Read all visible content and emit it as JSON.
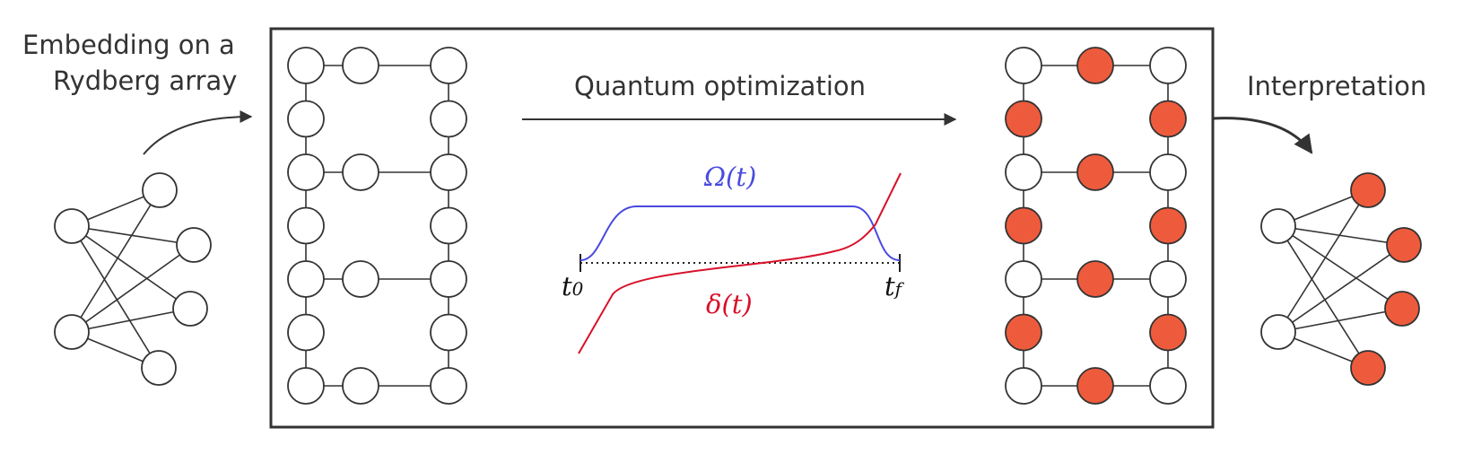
{
  "labels": {
    "embedding_line1": "Embedding on a",
    "embedding_line2": "Rydberg array",
    "quantum_optimization": "Quantum optimization",
    "interpretation": "Interpretation"
  },
  "pulse": {
    "omega_label": "Ω(t)",
    "delta_label": "δ(t)",
    "t0_base": "t",
    "t0_sub": "0",
    "tf_base": "t",
    "tf_sub": "f"
  },
  "colors": {
    "rydberg_fill": "#ee5b3c",
    "omega": "#4a4ae0",
    "delta": "#d8102a",
    "line": "#333333"
  }
}
